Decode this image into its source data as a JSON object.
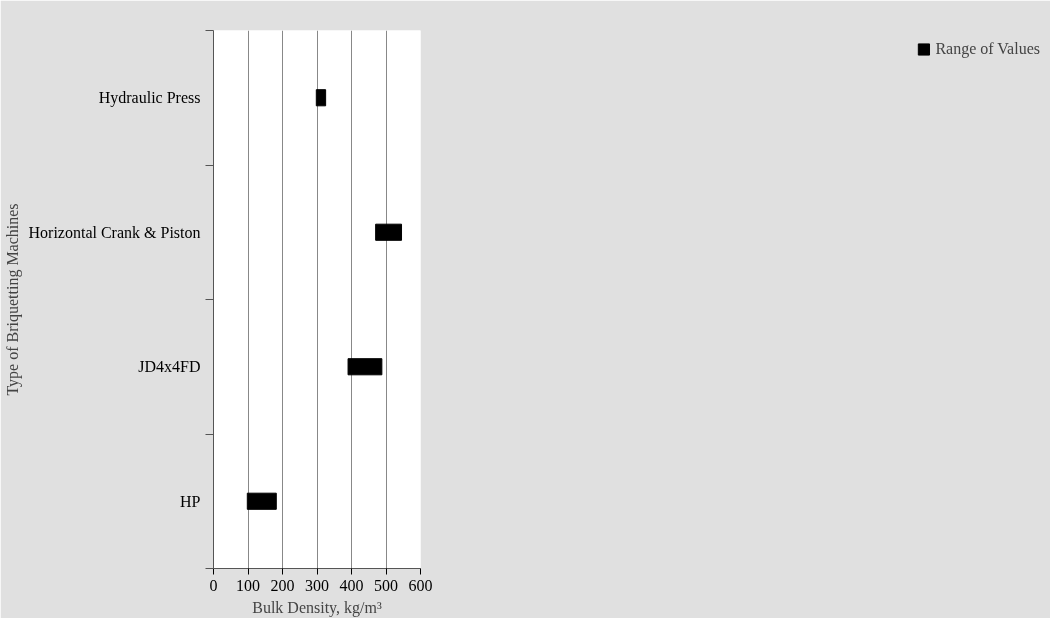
{
  "chart_data": {
    "type": "bar",
    "orientation": "horizontal",
    "xlabel": "Bulk Density, kg/m³",
    "ylabel": "Type of Briquetting Machines",
    "categories": [
      "Hydraulic Press",
      "Horizontal Crank & Piston",
      "JD4x4FD",
      "HP"
    ],
    "series": [
      {
        "name": "Range of Values",
        "color": "#000000",
        "base": [
          298,
          470,
          390,
          98
        ],
        "values": [
          27,
          75,
          98,
          84
        ]
      }
    ],
    "xlim": [
      0,
      600
    ],
    "xticks": [
      0,
      100,
      200,
      300,
      400,
      500,
      600
    ],
    "grid": "x",
    "legend": "right"
  }
}
